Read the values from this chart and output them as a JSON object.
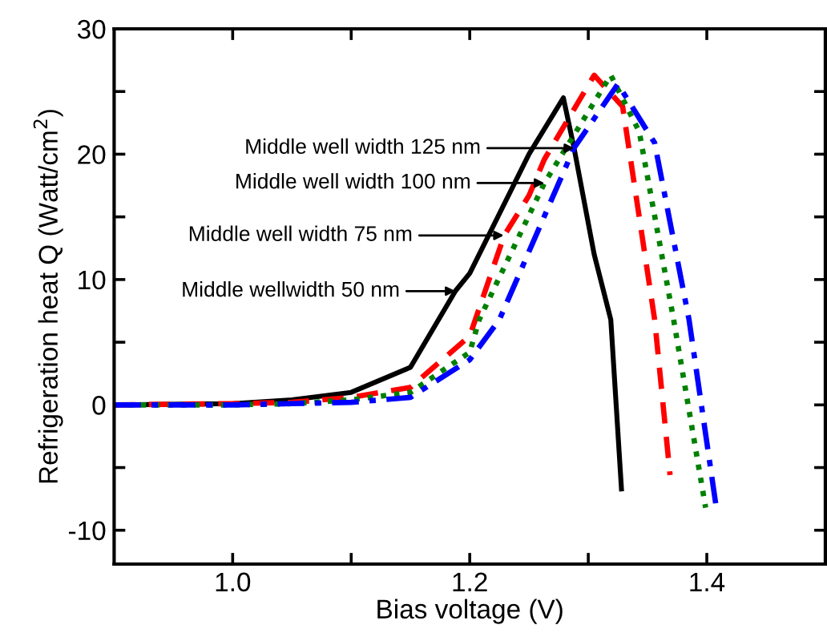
{
  "chart_data": {
    "type": "line",
    "xlabel": "Bias voltage (V)",
    "ylabel": "Refrigeration heat Q (Watt/cm$^{2}$)",
    "xlim": [
      0.9,
      1.5
    ],
    "ylim": [
      -12.7,
      30
    ],
    "xticks": [
      {
        "value": 1.0,
        "label": "1.0"
      },
      {
        "value": 1.1,
        "label": null
      },
      1.2,
      {
        "value": 1.3,
        "label": null
      },
      1.4
    ],
    "yticks": [
      -10,
      {
        "value": -5,
        "label": null
      },
      0,
      {
        "value": 5,
        "label": null
      },
      10,
      {
        "value": 15,
        "label": null
      },
      20,
      {
        "value": 25,
        "label": null
      },
      30
    ],
    "grid": false,
    "legend": false,
    "marker": "none",
    "series": [
      {
        "color": "#000000",
        "line_style": "solid",
        "x": [
          0.9,
          1.0,
          1.05,
          1.1,
          1.15,
          1.188,
          1.2,
          1.25,
          1.279,
          1.288,
          1.305,
          1.319,
          1.328
        ],
        "values": [
          0,
          0.1,
          0.4,
          1.0,
          3.0,
          9.1,
          10.5,
          20,
          24.5,
          20.5,
          12,
          6.8,
          -6.7
        ]
      },
      {
        "color": "#ff0000",
        "line_style": "dashed",
        "x": [
          0.9,
          1.0,
          1.05,
          1.1,
          1.15,
          1.2,
          1.229,
          1.25,
          1.263,
          1.305,
          1.329,
          1.356,
          1.369
        ],
        "values": [
          0,
          0.1,
          0.2,
          0.6,
          1.4,
          5.5,
          13.5,
          16.7,
          19.6,
          26.3,
          23.8,
          6.8,
          -5.6
        ]
      },
      {
        "color": "#008000",
        "line_style": "dotted",
        "x": [
          0.9,
          1.0,
          1.05,
          1.1,
          1.15,
          1.2,
          1.208,
          1.263,
          1.319,
          1.343,
          1.372,
          1.399
        ],
        "values": [
          0,
          0,
          0.1,
          0.4,
          1.0,
          4.2,
          6.8,
          17.7,
          26.3,
          21.8,
          6.8,
          -8.2
        ]
      },
      {
        "color": "#0000ff",
        "line_style": "dashdot",
        "x": [
          0.9,
          1.0,
          1.05,
          1.1,
          1.15,
          1.2,
          1.225,
          1.288,
          1.325,
          1.356,
          1.385,
          1.408
        ],
        "values": [
          0,
          0,
          0.1,
          0.2,
          0.6,
          3.6,
          6.8,
          20.5,
          25.6,
          20.9,
          6.8,
          -8.2
        ]
      }
    ],
    "annotations": [
      "Middle well width 125 nm",
      "Middle well width 100 nm",
      "Middle well width 75 nm",
      "Middle wellwidth 50 nm"
    ]
  }
}
